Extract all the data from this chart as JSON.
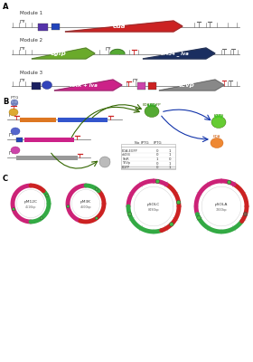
{
  "bg_color": "#f5f5f2",
  "panel_labels": [
    "A",
    "B",
    "C"
  ],
  "module_labels": [
    "Module 1",
    "Module 2",
    "Module 3"
  ],
  "eda_color": "#cc2222",
  "egfp_color": "#6aaa2a",
  "cl434_color": "#1a2e60",
  "tetr_color": "#cc2288",
  "tevp_color": "#888888",
  "purple_box_color": "#5533aa",
  "blue_box_color": "#2244bb",
  "dark_blue_box_color": "#1a2060",
  "pink_box_color": "#cc44aa",
  "red_small_color": "#cc2222",
  "line_color": "#666666",
  "orange_bar_color": "#dd7722",
  "blue_bar_color": "#3355cc",
  "table_rows": [
    "EDA-EGFP",
    "cl434",
    "TetR",
    "TEVp",
    "EGFP"
  ],
  "table_col1": "No IPTG",
  "table_col2": "IPTG",
  "table_data": [
    [
      0,
      1
    ],
    [
      0,
      1
    ],
    [
      1,
      0
    ],
    [
      0,
      1
    ],
    [
      0,
      1
    ]
  ],
  "plasmid_labels": [
    "pM12C",
    "pM3K",
    "pSOLC",
    "pSOLA"
  ],
  "plasmid_sizes": [
    "4516bp",
    "4600bp",
    "8490bp",
    "7800bp"
  ],
  "plasmid_pink_color": "#cc2277",
  "plasmid_red_color": "#cc2222",
  "plasmid_green_color": "#33aa44",
  "plasmid_light_green_color": "#88cc44",
  "plasmid_gray_color": "#aaaaaa"
}
